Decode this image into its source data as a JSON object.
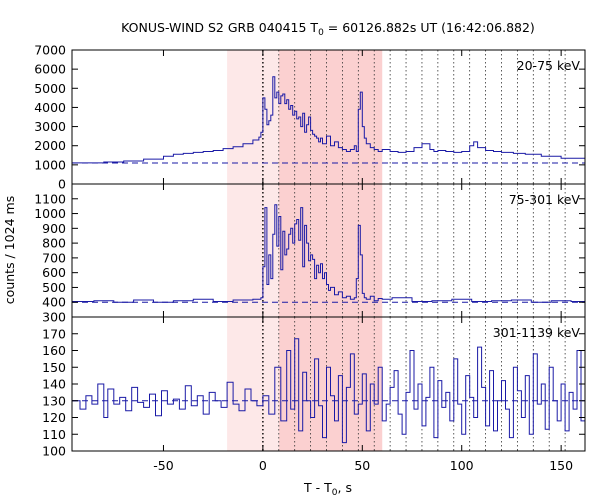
{
  "figure": {
    "title_prefix": "KONUS-WIND S2 GRB 040415 T",
    "title_sub": "0",
    "title_suffix": " = 60126.882s UT (16:42:06.882)",
    "ylabel": "counts / 1024 ms",
    "xlabel_prefix": "T - T",
    "xlabel_sub": "0",
    "xlabel_suffix": ", s"
  },
  "colors": {
    "line": "#1a1aa6",
    "shade_outer": "#fde8e8",
    "shade_inner": "#fbd0d0",
    "frame": "#000000"
  },
  "chart_data": {
    "type": "line",
    "render": "step",
    "xlim": [
      -96,
      162
    ],
    "xticks": [
      -50,
      0,
      50,
      100,
      150
    ],
    "shaded_intervals": [
      {
        "from": -18,
        "to": 60,
        "level": "outer"
      },
      {
        "from": 8,
        "to": 60,
        "level": "inner"
      }
    ],
    "trigger_line_x": 0,
    "interval_lines_x": [
      8,
      16,
      24,
      32,
      40,
      48,
      56,
      64,
      72,
      80,
      88,
      96,
      104,
      112,
      120,
      128,
      136,
      144,
      152
    ],
    "panels": [
      {
        "label": "20-75 keV",
        "ylim": [
          0,
          7000
        ],
        "yticks": [
          0,
          1000,
          2000,
          3000,
          4000,
          5000,
          6000,
          7000
        ],
        "background": 1100,
        "x": [
          -96,
          -80,
          -70,
          -60,
          -50,
          -45,
          -40,
          -35,
          -30,
          -25,
          -20,
          -15,
          -10,
          -5,
          -2,
          -1,
          0,
          1,
          2,
          3,
          4,
          5,
          6,
          7,
          8,
          9,
          10,
          11,
          12,
          13,
          14,
          15,
          16,
          17,
          18,
          19,
          20,
          21,
          22,
          23,
          24,
          25,
          26,
          27,
          28,
          29,
          30,
          32,
          34,
          36,
          38,
          40,
          42,
          44,
          46,
          47,
          48,
          49,
          50,
          51,
          52,
          54,
          56,
          58,
          60,
          64,
          68,
          72,
          76,
          80,
          84,
          86,
          88,
          92,
          96,
          100,
          104,
          106,
          108,
          112,
          116,
          120,
          126,
          132,
          140,
          150,
          162
        ],
        "values": [
          1100,
          1150,
          1200,
          1300,
          1450,
          1550,
          1600,
          1650,
          1700,
          1750,
          1850,
          1950,
          2100,
          2300,
          2450,
          2700,
          4500,
          3900,
          3100,
          3300,
          3600,
          5600,
          4500,
          4800,
          4200,
          4600,
          4700,
          4200,
          4400,
          3900,
          4100,
          3600,
          3800,
          3400,
          3500,
          3000,
          3700,
          2700,
          3100,
          3500,
          2800,
          2600,
          2500,
          2400,
          2200,
          2400,
          2100,
          2500,
          2000,
          2200,
          1900,
          1800,
          1700,
          1800,
          2000,
          1700,
          3900,
          4800,
          3000,
          2400,
          2100,
          1900,
          1800,
          1700,
          1800,
          1700,
          1650,
          1700,
          1900,
          2100,
          1800,
          1700,
          1750,
          1700,
          1650,
          1700,
          2000,
          2200,
          1900,
          1750,
          1700,
          1650,
          1600,
          1550,
          1450,
          1350,
          1300
        ]
      },
      {
        "label": "75-301 keV",
        "ylim": [
          300,
          1200
        ],
        "yticks": [
          300,
          400,
          500,
          600,
          700,
          800,
          900,
          1000,
          1100
        ],
        "background": 400,
        "x": [
          -96,
          -85,
          -75,
          -65,
          -55,
          -45,
          -35,
          -25,
          -15,
          -5,
          -1,
          0,
          1,
          2,
          3,
          4,
          5,
          6,
          7,
          8,
          9,
          10,
          11,
          12,
          13,
          14,
          15,
          16,
          17,
          18,
          19,
          20,
          21,
          22,
          23,
          24,
          25,
          26,
          27,
          28,
          29,
          30,
          31,
          32,
          33,
          34,
          36,
          38,
          40,
          42,
          44,
          46,
          47,
          48,
          49,
          50,
          51,
          52,
          54,
          56,
          58,
          60,
          65,
          75,
          85,
          95,
          105,
          115,
          125,
          135,
          145,
          155,
          162
        ],
        "values": [
          405,
          410,
          400,
          415,
          400,
          410,
          420,
          405,
          415,
          420,
          430,
          640,
          1040,
          520,
          720,
          560,
          860,
          1060,
          780,
          980,
          620,
          880,
          720,
          760,
          860,
          900,
          800,
          930,
          960,
          820,
          1040,
          640,
          920,
          800,
          680,
          720,
          690,
          560,
          650,
          600,
          660,
          560,
          600,
          520,
          480,
          500,
          450,
          470,
          430,
          440,
          420,
          430,
          560,
          920,
          720,
          460,
          430,
          420,
          440,
          410,
          425,
          420,
          430,
          405,
          410,
          420,
          405,
          410,
          415,
          400,
          410,
          405,
          400
        ]
      },
      {
        "label": "301-1139 keV",
        "ylim": [
          100,
          180
        ],
        "yticks": [
          100,
          110,
          120,
          130,
          140,
          150,
          160,
          170
        ],
        "background": 130,
        "x": [
          -96,
          -92,
          -89,
          -86,
          -83,
          -80,
          -78,
          -75,
          -72,
          -69,
          -66,
          -63,
          -60,
          -57,
          -54,
          -51,
          -48,
          -45,
          -42,
          -39,
          -36,
          -33,
          -30,
          -27,
          -24,
          -21,
          -18,
          -15,
          -12,
          -9,
          -6,
          -3,
          0,
          3,
          6,
          9,
          12,
          14,
          16,
          18,
          20,
          22,
          24,
          26,
          28,
          30,
          32,
          34,
          36,
          38,
          40,
          42,
          44,
          46,
          48,
          50,
          52,
          54,
          56,
          58,
          60,
          62,
          64,
          66,
          68,
          70,
          72,
          74,
          76,
          78,
          80,
          82,
          84,
          86,
          88,
          90,
          92,
          94,
          96,
          98,
          100,
          102,
          104,
          106,
          108,
          110,
          112,
          114,
          116,
          118,
          120,
          122,
          124,
          126,
          128,
          130,
          132,
          134,
          136,
          138,
          140,
          142,
          144,
          146,
          148,
          150,
          152,
          154,
          156,
          158,
          160
        ],
        "values": [
          130,
          125,
          133,
          128,
          140,
          120,
          137,
          128,
          132,
          124,
          138,
          129,
          126,
          134,
          121,
          136,
          128,
          131,
          125,
          139,
          127,
          133,
          122,
          135,
          130,
          126,
          141,
          128,
          124,
          137,
          130,
          127,
          133,
          122,
          150,
          118,
          160,
          125,
          167,
          112,
          147,
          130,
          120,
          155,
          127,
          108,
          150,
          133,
          118,
          145,
          105,
          138,
          158,
          122,
          128,
          146,
          112,
          140,
          128,
          150,
          118,
          128,
          138,
          148,
          122,
          110,
          135,
          160,
          125,
          140,
          115,
          132,
          150,
          108,
          142,
          126,
          135,
          118,
          155,
          128,
          110,
          145,
          132,
          120,
          162,
          138,
          115,
          148,
          112,
          130,
          142,
          125,
          108,
          150,
          136,
          120,
          145,
          110,
          158,
          128,
          140,
          113,
          150,
          130,
          118,
          140,
          112,
          135,
          125,
          160,
          118
        ]
      }
    ]
  }
}
